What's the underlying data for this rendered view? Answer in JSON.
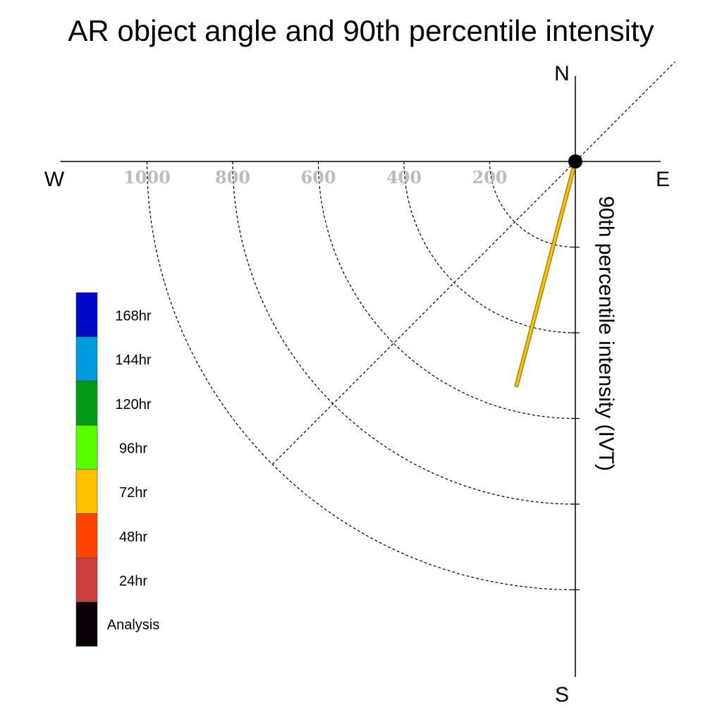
{
  "chart_data": {
    "type": "polar-line",
    "title": "AR object angle and 90th percentile intensity",
    "ylabel": "90th percentile intensity (IVT)",
    "compass": {
      "north": "N",
      "south": "S",
      "east": "E",
      "west": "W"
    },
    "radial_ticks": [
      {
        "value": 200,
        "label": "200"
      },
      {
        "value": 400,
        "label": "400"
      },
      {
        "value": 600,
        "label": "600"
      },
      {
        "value": 800,
        "label": "800"
      },
      {
        "value": 1000,
        "label": "1000"
      }
    ],
    "rmax": 1200,
    "diagonal_angle_deg": 45,
    "series": [
      {
        "name": "72hr",
        "angle_deg": 194.7,
        "intensity": 540,
        "color": "#ffc000"
      }
    ],
    "origin_marker_color": "#000000",
    "legend": {
      "placement": "left",
      "items": [
        {
          "label": "168hr",
          "color": "#0008c8"
        },
        {
          "label": "144hr",
          "color": "#009ade"
        },
        {
          "label": "120hr",
          "color": "#009a16"
        },
        {
          "label": "96hr",
          "color": "#55ff00"
        },
        {
          "label": "72hr",
          "color": "#ffc000"
        },
        {
          "label": "48hr",
          "color": "#ff4400"
        },
        {
          "label": "24hr",
          "color": "#cc3d3d"
        },
        {
          "label": "Analysis",
          "color": "#0a0008"
        }
      ]
    }
  }
}
